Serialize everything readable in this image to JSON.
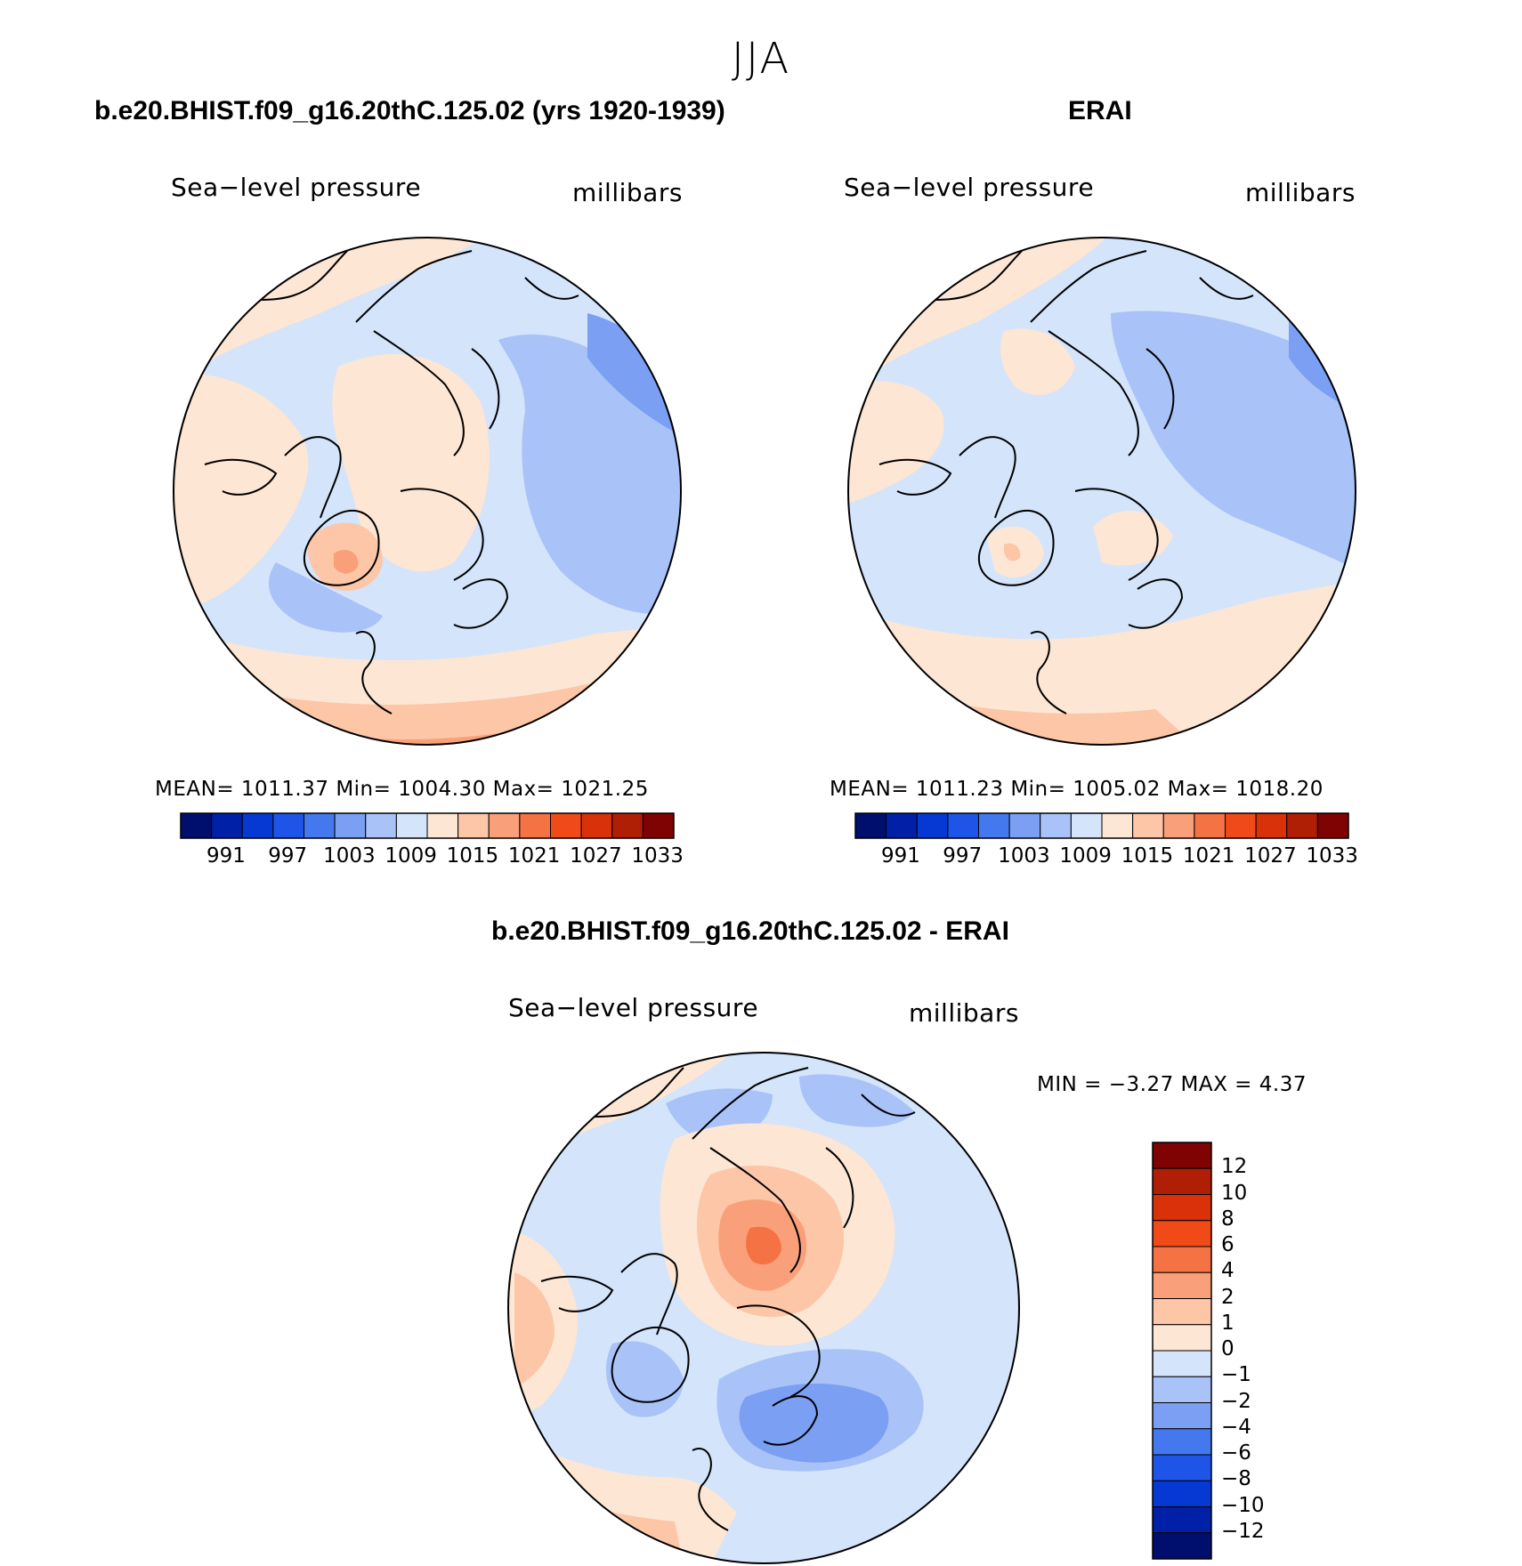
{
  "figure": {
    "season": "JJA"
  },
  "colors": {
    "abs_levels": [
      "#000e6e",
      "#0020a8",
      "#0638d4",
      "#1e55e8",
      "#4478ee",
      "#7a9ff3",
      "#a9c2f8",
      "#d3e4fb",
      "#fde6d4",
      "#fcc6a7",
      "#f9a07a",
      "#f57244",
      "#ef4a18",
      "#d9320a",
      "#b01e05",
      "#7f0303"
    ],
    "diff_levels": [
      "#000e6e",
      "#0020a8",
      "#0638d4",
      "#1e55e8",
      "#4478ee",
      "#7a9ff3",
      "#a9c2f8",
      "#d3e4fb",
      "#fde6d4",
      "#fcc6a7",
      "#f9a07a",
      "#f57244",
      "#ef4a18",
      "#d9320a",
      "#b01e05",
      "#7f0303"
    ]
  },
  "panels": {
    "model": {
      "title": "b.e20.BHIST.f09_g16.20thC.125.02 (yrs 1920-1939)",
      "variable": "Sea−level pressure",
      "units": "millibars",
      "stats": "MEAN=  1011.37   Min=  1004.30   Max=  1021.25",
      "colorbar_ticks": [
        "991",
        "997",
        "1003",
        "1009",
        "1015",
        "1021",
        "1027",
        "1033"
      ]
    },
    "obs": {
      "title": "ERAI",
      "variable": "Sea−level pressure",
      "units": "millibars",
      "stats": "MEAN=  1011.23   Min=  1005.02   Max=  1018.20",
      "colorbar_ticks": [
        "991",
        "997",
        "1003",
        "1009",
        "1015",
        "1021",
        "1027",
        "1033"
      ]
    },
    "diff": {
      "title": "b.e20.BHIST.f09_g16.20thC.125.02 - ERAI",
      "variable": "Sea−level pressure",
      "units": "millibars",
      "stats": "MIN =    −3.27  MAX =     4.37",
      "colorbar_ticks": [
        "12",
        "10",
        "8",
        "6",
        "4",
        "2",
        "1",
        "0",
        "−1",
        "−2",
        "−4",
        "−6",
        "−8",
        "−10",
        "−12"
      ]
    }
  },
  "chart_data": [
    {
      "type": "heatmap",
      "title": "b.e20.BHIST.f09_g16.20thC.125.02 (yrs 1920-1939)",
      "variable": "Sea−level pressure",
      "units": "millibars",
      "mean": 1011.37,
      "min": 1004.3,
      "max": 1021.25,
      "contour_levels": [
        991,
        994,
        997,
        1000,
        1003,
        1006,
        1009,
        1012,
        1015,
        1018,
        1021,
        1024,
        1027,
        1030,
        1033
      ]
    },
    {
      "type": "heatmap",
      "title": "ERAI",
      "variable": "Sea−level pressure",
      "units": "millibars",
      "mean": 1011.23,
      "min": 1005.02,
      "max": 1018.2,
      "contour_levels": [
        991,
        994,
        997,
        1000,
        1003,
        1006,
        1009,
        1012,
        1015,
        1018,
        1021,
        1024,
        1027,
        1030,
        1033
      ]
    },
    {
      "type": "heatmap",
      "title": "b.e20.BHIST.f09_g16.20thC.125.02 - ERAI",
      "variable": "Sea−level pressure",
      "units": "millibars",
      "min": -3.27,
      "max": 4.37,
      "contour_levels": [
        -12,
        -10,
        -8,
        -6,
        -4,
        -2,
        -1,
        0,
        1,
        2,
        4,
        6,
        8,
        10,
        12
      ]
    }
  ]
}
